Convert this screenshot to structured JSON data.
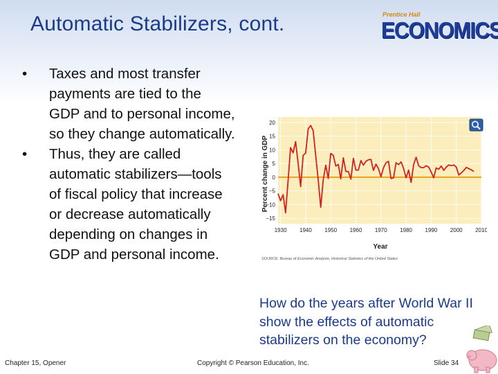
{
  "slide": {
    "title": "Automatic Stabilizers, cont.",
    "logo": {
      "brand": "Prentice Hall",
      "word": "ECONOMICS"
    },
    "bullets": [
      "Taxes and most transfer payments are tied to the GDP and to personal income, so they change automatically.",
      "Thus, they are called automatic stabilizers—tools of fiscal policy that increase or decrease automatically depending on changes in GDP and personal income."
    ],
    "bullet_char": "•",
    "question": "How do the years after World War II show the effects of automatic stabilizers on the economy?",
    "footer": {
      "left": "Chapter 15, Opener",
      "center": "Copyright © Pearson Education, Inc.",
      "right": "Slide 34"
    }
  },
  "chart_data": {
    "type": "line",
    "ylabel": "Percent change in GDP",
    "xlabel": "Year",
    "source": "SOURCE: Bureau of Economic Analysis, Historical Statistics of the United States",
    "xlim": [
      1929,
      2010
    ],
    "ylim": [
      -17,
      22
    ],
    "xticks": [
      1930,
      1940,
      1950,
      1960,
      1970,
      1980,
      1990,
      2000,
      2010
    ],
    "yticks": [
      20,
      15,
      10,
      5,
      0,
      -5,
      -10,
      -15
    ],
    "ytick_labels": [
      "20",
      "15",
      "10",
      "5",
      "0",
      "−5",
      "−10",
      "−15"
    ],
    "grid": true,
    "colors": {
      "line": "#d42020",
      "background": "#fbeebc",
      "zero_line": "#e8a21a",
      "grid": "#ffffff"
    },
    "series": [
      {
        "x": [
          1929,
          1930,
          1931,
          1932,
          1933,
          1934,
          1935,
          1936,
          1937,
          1938,
          1939,
          1940,
          1941,
          1942,
          1943,
          1944,
          1945,
          1946,
          1947,
          1948,
          1949,
          1950,
          1951,
          1952,
          1953,
          1954,
          1955,
          1956,
          1957,
          1958,
          1959,
          1960,
          1961,
          1962,
          1963,
          1964,
          1965,
          1966,
          1967,
          1968,
          1969,
          1970,
          1971,
          1972,
          1973,
          1974,
          1975,
          1976,
          1977,
          1978,
          1979,
          1980,
          1981,
          1982,
          1983,
          1984,
          1985,
          1986,
          1987,
          1988,
          1989,
          1990,
          1991,
          1992,
          1993,
          1994,
          1995,
          1996,
          1997,
          1998,
          1999,
          2000,
          2001,
          2002,
          2003,
          2004,
          2005,
          2006,
          2007
        ],
        "y": [
          -6,
          -8.6,
          -6.4,
          -13,
          -1.3,
          10.8,
          8.9,
          13,
          5.1,
          -3.4,
          8,
          8.8,
          17.7,
          18.9,
          17,
          8,
          -1,
          -11,
          -1,
          4.4,
          -0.5,
          8.7,
          8,
          4.1,
          4.7,
          -0.6,
          7.1,
          2.1,
          2.1,
          -0.7,
          6.9,
          2.6,
          2.6,
          6.1,
          4.4,
          5.8,
          6.4,
          6.5,
          2.5,
          4.8,
          3.1,
          0.2,
          3.4,
          5.3,
          5.8,
          -0.5,
          -0.2,
          5.3,
          4.6,
          5.6,
          3.2,
          -0.2,
          2.6,
          -1.9,
          4.6,
          7.3,
          4.2,
          3.5,
          3.5,
          4.2,
          3.7,
          1.9,
          -0.2,
          3.4,
          2.9,
          4.1,
          2.5,
          3.7,
          4.5,
          4.2,
          4.5,
          3.7,
          0.8,
          1.6,
          2.5,
          3.6,
          3.1,
          2.7,
          2.1
        ]
      }
    ]
  }
}
